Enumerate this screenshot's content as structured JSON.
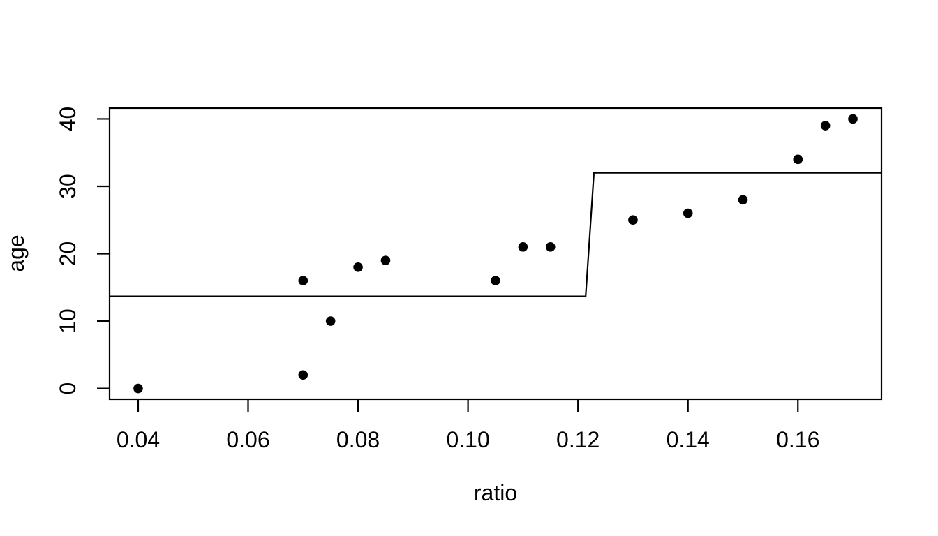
{
  "figure": {
    "background_color": "#ffffff",
    "foreground_color": "#000000"
  },
  "chart_data": {
    "type": "scatter",
    "title": "",
    "xlabel": "ratio",
    "ylabel": "age",
    "x_ticks": [
      0.04,
      0.06,
      0.08,
      0.1,
      0.12,
      0.14,
      0.16
    ],
    "x_tick_labels": [
      "0.04",
      "0.06",
      "0.08",
      "0.10",
      "0.12",
      "0.14",
      "0.16"
    ],
    "y_ticks": [
      0,
      10,
      20,
      30,
      40
    ],
    "y_tick_labels": [
      "0",
      "10",
      "20",
      "30",
      "40"
    ],
    "xlim": [
      0.0348,
      0.1752
    ],
    "ylim": [
      -1.6,
      41.6
    ],
    "grid": false,
    "legend": false,
    "marker": {
      "shape": "filled-circle",
      "color": "#000000"
    },
    "points": [
      {
        "x": 0.04,
        "y": 0
      },
      {
        "x": 0.07,
        "y": 2
      },
      {
        "x": 0.07,
        "y": 16
      },
      {
        "x": 0.075,
        "y": 10
      },
      {
        "x": 0.08,
        "y": 18
      },
      {
        "x": 0.085,
        "y": 19
      },
      {
        "x": 0.105,
        "y": 16
      },
      {
        "x": 0.11,
        "y": 21
      },
      {
        "x": 0.115,
        "y": 21
      },
      {
        "x": 0.13,
        "y": 25
      },
      {
        "x": 0.14,
        "y": 26
      },
      {
        "x": 0.15,
        "y": 28
      },
      {
        "x": 0.16,
        "y": 34
      },
      {
        "x": 0.165,
        "y": 39
      },
      {
        "x": 0.17,
        "y": 40
      }
    ],
    "step_line": {
      "color": "#000000",
      "points": [
        {
          "x": 0.0348,
          "y": 13.67
        },
        {
          "x": 0.1214,
          "y": 13.67
        },
        {
          "x": 0.1229,
          "y": 32
        },
        {
          "x": 0.1752,
          "y": 32
        }
      ]
    }
  }
}
